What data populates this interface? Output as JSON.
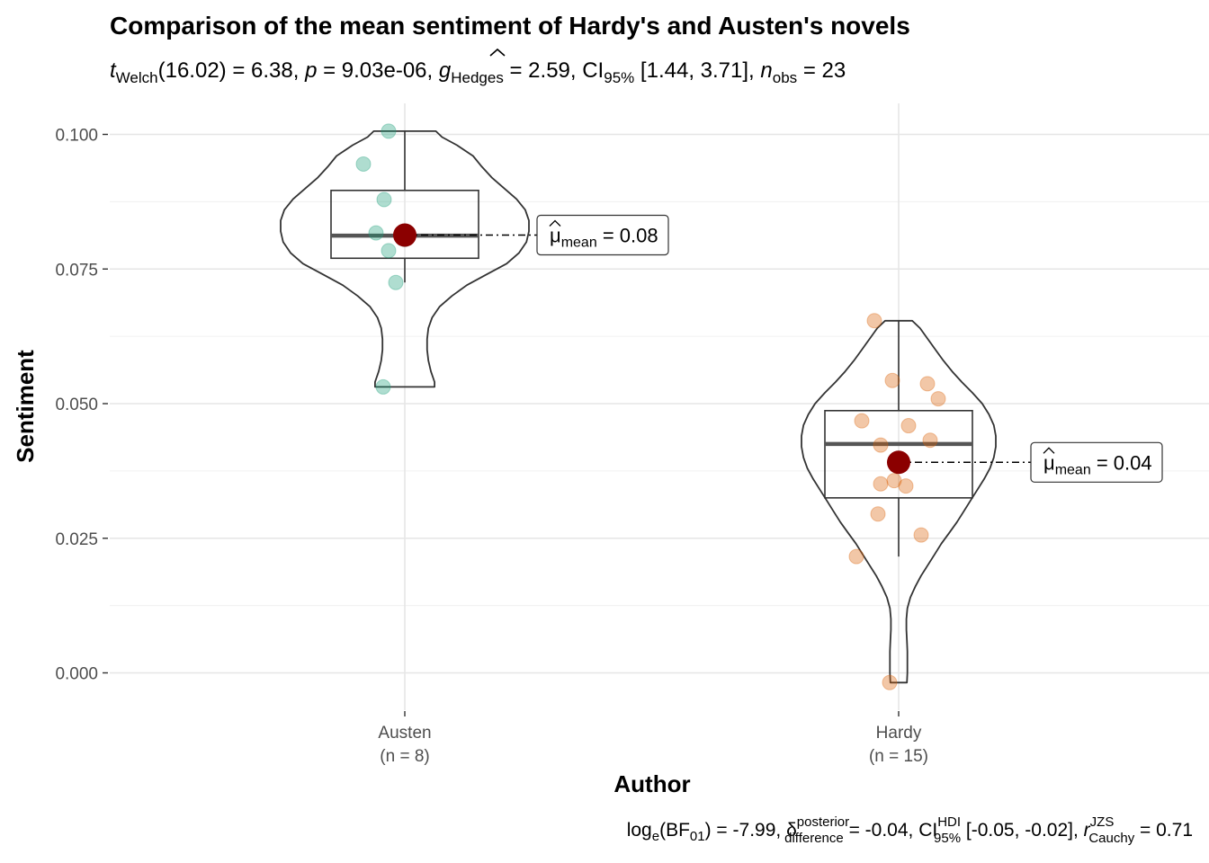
{
  "chart_data": {
    "type": "violin",
    "title": "Comparison of the mean sentiment of Hardy's and Austen's novels",
    "subtitle": {
      "test_stat": "t",
      "test_sub": "Welch",
      "df": "(16.02)",
      "stat_value": " = 6.38, ",
      "p_symbol": "p",
      "p_value": " = 9.03e-06, ",
      "effect_symbol": "g",
      "effect_sub": "Hedges",
      "effect_value": " = 2.59, CI",
      "ci_sub": "95%",
      "ci_value": " [1.44, 3.71], ",
      "n_symbol": "n",
      "n_sub": "obs",
      "n_value": " = 23"
    },
    "xlabel": "Author",
    "ylabel": "Sentiment",
    "ylim": [
      -0.007,
      0.103
    ],
    "y_ticks": [
      0.0,
      0.025,
      0.05,
      0.075,
      0.1
    ],
    "y_tick_labels": [
      "0.000",
      "0.025",
      "0.050",
      "0.075",
      "0.100"
    ],
    "grid": true,
    "groups": [
      {
        "name": "Austen",
        "n_label": "(n = 8)",
        "color": "#1b9e77",
        "points": [
          0.1006,
          0.0945,
          0.0879,
          0.0817,
          0.0784,
          0.0725,
          0.0531,
          0.0805
        ],
        "box": {
          "min": 0.0725,
          "q1": 0.077,
          "median": 0.0812,
          "q3": 0.0896,
          "max": 0.1006
        },
        "mean": 0.0813,
        "mean_label_sym": "μ",
        "mean_label_sub": "mean",
        "mean_label_value": " = 0.08",
        "violin": {
          "y": [
            0.1006,
            0.0995,
            0.098,
            0.096,
            0.094,
            0.092,
            0.09,
            0.088,
            0.086,
            0.084,
            0.082,
            0.08,
            0.078,
            0.076,
            0.074,
            0.072,
            0.07,
            0.068,
            0.066,
            0.064,
            0.062,
            0.06,
            0.058,
            0.056,
            0.054,
            0.0531
          ],
          "w": [
            0.25,
            0.3,
            0.42,
            0.55,
            0.62,
            0.7,
            0.8,
            0.9,
            0.97,
            1.0,
            1.0,
            0.98,
            0.92,
            0.82,
            0.66,
            0.5,
            0.38,
            0.28,
            0.22,
            0.19,
            0.18,
            0.18,
            0.19,
            0.21,
            0.24,
            0.24
          ]
        }
      },
      {
        "name": "Hardy",
        "n_label": "(n = 15)",
        "color": "#d95f02",
        "points": [
          0.0654,
          0.0543,
          0.0537,
          0.0509,
          0.0468,
          0.0459,
          0.0432,
          0.0423,
          0.0357,
          0.0351,
          0.0347,
          0.0295,
          0.0256,
          0.0216,
          -0.0018
        ],
        "box": {
          "min": 0.0216,
          "q1": 0.0325,
          "median": 0.0425,
          "q3": 0.0487,
          "max": 0.0654
        },
        "mean": 0.0391,
        "mean_label_sym": "μ",
        "mean_label_sub": "mean",
        "mean_label_value": " = 0.04",
        "violin": {
          "y": [
            0.0654,
            0.064,
            0.062,
            0.06,
            0.058,
            0.056,
            0.054,
            0.052,
            0.05,
            0.048,
            0.046,
            0.044,
            0.042,
            0.04,
            0.038,
            0.036,
            0.034,
            0.032,
            0.03,
            0.028,
            0.026,
            0.024,
            0.022,
            0.02,
            0.018,
            0.016,
            0.014,
            0.012,
            0.01,
            0.008,
            0.006,
            0.004,
            0.002,
            0.0,
            -0.0018
          ],
          "w": [
            0.14,
            0.22,
            0.3,
            0.38,
            0.46,
            0.55,
            0.65,
            0.76,
            0.86,
            0.93,
            0.98,
            1.0,
            1.0,
            0.98,
            0.94,
            0.88,
            0.81,
            0.74,
            0.67,
            0.6,
            0.52,
            0.44,
            0.37,
            0.3,
            0.23,
            0.17,
            0.12,
            0.09,
            0.08,
            0.08,
            0.085,
            0.09,
            0.09,
            0.09,
            0.085
          ]
        }
      }
    ],
    "caption": {
      "log_text": "log",
      "log_sub": "e",
      "bf_open": "(BF",
      "bf_sub": "01",
      "bf_close": ") = -7.99, ",
      "delta_sym": "δ",
      "delta_sup": "posterior",
      "delta_sub": "difference",
      "delta_value": " = -0.04, CI",
      "ci_sup": "HDI",
      "ci_sub": "95%",
      "ci_value": " [-0.05, -0.02], ",
      "r_sym": "r",
      "r_sup": "JZS",
      "r_sub": "Cauchy",
      "r_value": " = 0.71"
    }
  }
}
